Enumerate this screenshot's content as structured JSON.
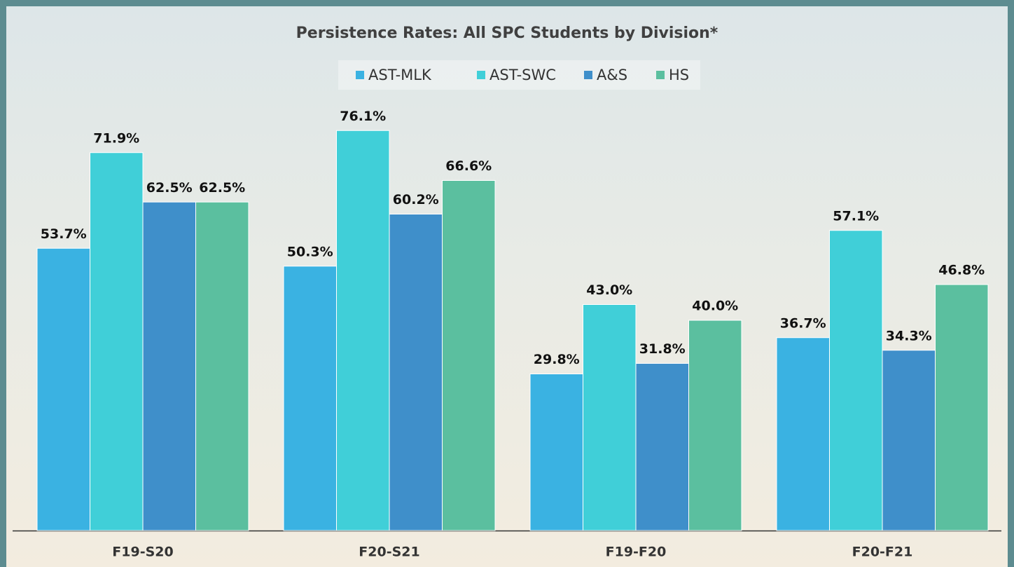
{
  "chart_data": {
    "type": "bar",
    "title": "Persistence Rates: All SPC Students by Division*",
    "categories": [
      "F19-S20",
      "F20-S21",
      "F19-F20",
      "F20-F21"
    ],
    "series": [
      {
        "name": "AST-MLK",
        "color": "#3ab2e2",
        "values": [
          53.7,
          50.3,
          29.8,
          36.7
        ],
        "value_labels": [
          "53.7%",
          "50.3%",
          "29.8%",
          "36.7%"
        ]
      },
      {
        "name": "AST-SWC",
        "color": "#40cfd8",
        "values": [
          71.9,
          76.1,
          43.0,
          57.1
        ],
        "value_labels": [
          "71.9%",
          "76.1%",
          "43.0%",
          "57.1%"
        ]
      },
      {
        "name": "A&S",
        "color": "#3f8fca",
        "values": [
          62.5,
          60.2,
          31.8,
          34.3
        ],
        "value_labels": [
          "62.5%",
          "60.2%",
          "31.8%",
          "34.3%"
        ]
      },
      {
        "name": "HS",
        "color": "#5bbf9f",
        "values": [
          62.5,
          66.6,
          40.0,
          46.8
        ],
        "value_labels": [
          "62.5%",
          "66.6%",
          "40.0%",
          "46.8%"
        ]
      }
    ],
    "legend": "top"
  }
}
